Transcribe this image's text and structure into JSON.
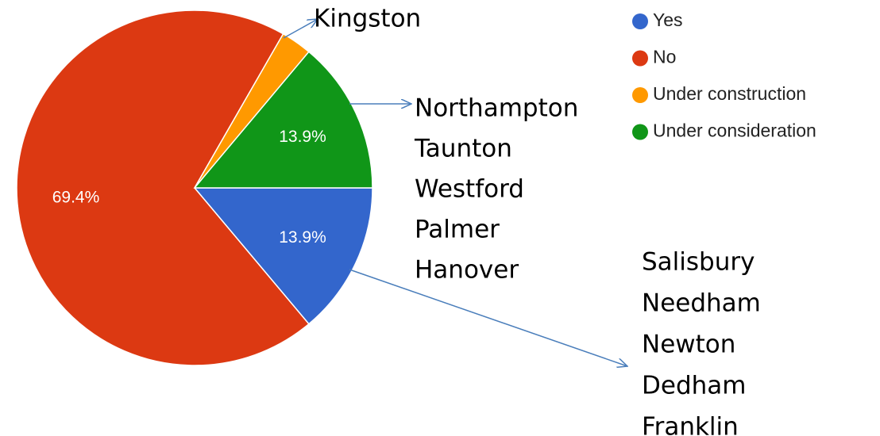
{
  "chart_data": {
    "type": "pie",
    "categories": [
      "Yes",
      "No",
      "Under construction",
      "Under consideration"
    ],
    "values": [
      13.9,
      69.4,
      2.8,
      13.9
    ],
    "value_labels": [
      "13.9%",
      "69.4%",
      null,
      "13.9%"
    ],
    "colors": [
      "#3366cc",
      "#dc3912",
      "#ff9900",
      "#109618"
    ],
    "legend": "right",
    "annotations": [
      {
        "lines": [
          "Kingston"
        ]
      },
      {
        "lines": [
          "Northampton",
          "Taunton",
          "Westford",
          "Palmer",
          "Hanover"
        ]
      },
      {
        "lines": [
          "Salisbury",
          "Needham",
          "Newton",
          "Dedham",
          "Franklin"
        ]
      }
    ]
  }
}
